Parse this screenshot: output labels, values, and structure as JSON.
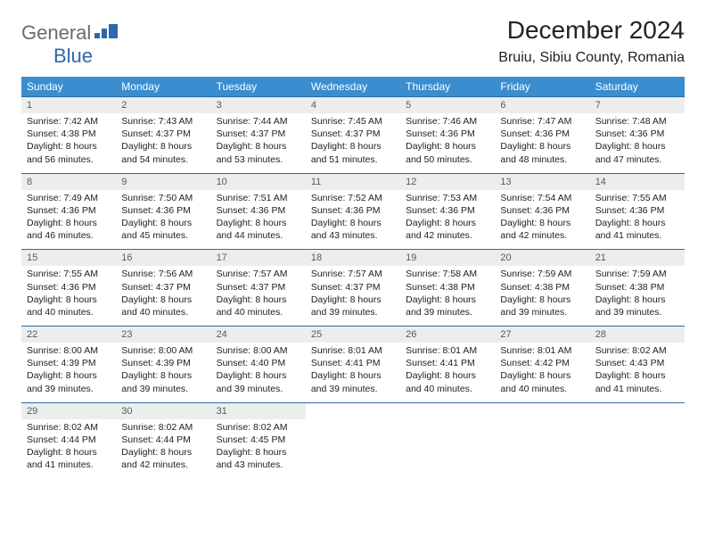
{
  "logo": {
    "text1": "General",
    "text2": "Blue"
  },
  "title": "December 2024",
  "location": "Bruiu, Sibiu County, Romania",
  "colors": {
    "header_bg": "#3a8dce",
    "header_text": "#ffffff",
    "daynum_bg": "#eceeee",
    "daynum_text": "#555b5d",
    "week_border": "#2b6aa8",
    "logo_gray": "#6b6b6b",
    "logo_blue": "#2b6aa8"
  },
  "dow": [
    "Sunday",
    "Monday",
    "Tuesday",
    "Wednesday",
    "Thursday",
    "Friday",
    "Saturday"
  ],
  "weeks": [
    [
      {
        "n": "1",
        "sr": "7:42 AM",
        "ss": "4:38 PM",
        "dl": "8 hours and 56 minutes."
      },
      {
        "n": "2",
        "sr": "7:43 AM",
        "ss": "4:37 PM",
        "dl": "8 hours and 54 minutes."
      },
      {
        "n": "3",
        "sr": "7:44 AM",
        "ss": "4:37 PM",
        "dl": "8 hours and 53 minutes."
      },
      {
        "n": "4",
        "sr": "7:45 AM",
        "ss": "4:37 PM",
        "dl": "8 hours and 51 minutes."
      },
      {
        "n": "5",
        "sr": "7:46 AM",
        "ss": "4:36 PM",
        "dl": "8 hours and 50 minutes."
      },
      {
        "n": "6",
        "sr": "7:47 AM",
        "ss": "4:36 PM",
        "dl": "8 hours and 48 minutes."
      },
      {
        "n": "7",
        "sr": "7:48 AM",
        "ss": "4:36 PM",
        "dl": "8 hours and 47 minutes."
      }
    ],
    [
      {
        "n": "8",
        "sr": "7:49 AM",
        "ss": "4:36 PM",
        "dl": "8 hours and 46 minutes."
      },
      {
        "n": "9",
        "sr": "7:50 AM",
        "ss": "4:36 PM",
        "dl": "8 hours and 45 minutes."
      },
      {
        "n": "10",
        "sr": "7:51 AM",
        "ss": "4:36 PM",
        "dl": "8 hours and 44 minutes."
      },
      {
        "n": "11",
        "sr": "7:52 AM",
        "ss": "4:36 PM",
        "dl": "8 hours and 43 minutes."
      },
      {
        "n": "12",
        "sr": "7:53 AM",
        "ss": "4:36 PM",
        "dl": "8 hours and 42 minutes."
      },
      {
        "n": "13",
        "sr": "7:54 AM",
        "ss": "4:36 PM",
        "dl": "8 hours and 42 minutes."
      },
      {
        "n": "14",
        "sr": "7:55 AM",
        "ss": "4:36 PM",
        "dl": "8 hours and 41 minutes."
      }
    ],
    [
      {
        "n": "15",
        "sr": "7:55 AM",
        "ss": "4:36 PM",
        "dl": "8 hours and 40 minutes."
      },
      {
        "n": "16",
        "sr": "7:56 AM",
        "ss": "4:37 PM",
        "dl": "8 hours and 40 minutes."
      },
      {
        "n": "17",
        "sr": "7:57 AM",
        "ss": "4:37 PM",
        "dl": "8 hours and 40 minutes."
      },
      {
        "n": "18",
        "sr": "7:57 AM",
        "ss": "4:37 PM",
        "dl": "8 hours and 39 minutes."
      },
      {
        "n": "19",
        "sr": "7:58 AM",
        "ss": "4:38 PM",
        "dl": "8 hours and 39 minutes."
      },
      {
        "n": "20",
        "sr": "7:59 AM",
        "ss": "4:38 PM",
        "dl": "8 hours and 39 minutes."
      },
      {
        "n": "21",
        "sr": "7:59 AM",
        "ss": "4:38 PM",
        "dl": "8 hours and 39 minutes."
      }
    ],
    [
      {
        "n": "22",
        "sr": "8:00 AM",
        "ss": "4:39 PM",
        "dl": "8 hours and 39 minutes."
      },
      {
        "n": "23",
        "sr": "8:00 AM",
        "ss": "4:39 PM",
        "dl": "8 hours and 39 minutes."
      },
      {
        "n": "24",
        "sr": "8:00 AM",
        "ss": "4:40 PM",
        "dl": "8 hours and 39 minutes."
      },
      {
        "n": "25",
        "sr": "8:01 AM",
        "ss": "4:41 PM",
        "dl": "8 hours and 39 minutes."
      },
      {
        "n": "26",
        "sr": "8:01 AM",
        "ss": "4:41 PM",
        "dl": "8 hours and 40 minutes."
      },
      {
        "n": "27",
        "sr": "8:01 AM",
        "ss": "4:42 PM",
        "dl": "8 hours and 40 minutes."
      },
      {
        "n": "28",
        "sr": "8:02 AM",
        "ss": "4:43 PM",
        "dl": "8 hours and 41 minutes."
      }
    ],
    [
      {
        "n": "29",
        "sr": "8:02 AM",
        "ss": "4:44 PM",
        "dl": "8 hours and 41 minutes."
      },
      {
        "n": "30",
        "sr": "8:02 AM",
        "ss": "4:44 PM",
        "dl": "8 hours and 42 minutes."
      },
      {
        "n": "31",
        "sr": "8:02 AM",
        "ss": "4:45 PM",
        "dl": "8 hours and 43 minutes."
      },
      null,
      null,
      null,
      null
    ]
  ],
  "labels": {
    "sunrise": "Sunrise:",
    "sunset": "Sunset:",
    "daylight": "Daylight:"
  }
}
